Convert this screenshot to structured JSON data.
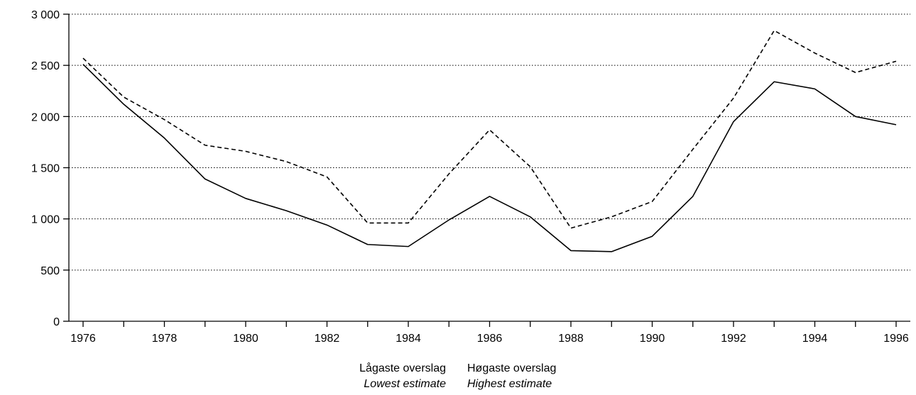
{
  "chart_data": {
    "type": "line",
    "title": "",
    "xlabel": "",
    "ylabel": "",
    "x": [
      1976,
      1977,
      1978,
      1979,
      1980,
      1981,
      1982,
      1983,
      1984,
      1985,
      1986,
      1987,
      1988,
      1989,
      1990,
      1991,
      1992,
      1993,
      1994,
      1995,
      1996
    ],
    "x_ticks": [
      "1976",
      "1978",
      "1980",
      "1982",
      "1984",
      "1986",
      "1988",
      "1990",
      "1992",
      "1994",
      "1996"
    ],
    "y_ticks": [
      "0",
      "500",
      "1 000",
      "1 500",
      "2 000",
      "2 500",
      "3 000"
    ],
    "y_tick_values": [
      0,
      500,
      1000,
      1500,
      2000,
      2500,
      3000
    ],
    "ylim": [
      0,
      3000
    ],
    "xlim": [
      1976,
      1996
    ],
    "grid": "horizontal dotted",
    "legend_position": "bottom-center",
    "series": [
      {
        "name": "Lågaste overslag",
        "name_en": "Lowest estimate",
        "style": "solid",
        "color": "#000000",
        "values": [
          2510,
          2120,
          1790,
          1390,
          1200,
          1080,
          940,
          750,
          730,
          990,
          1220,
          1020,
          690,
          680,
          830,
          1220,
          1950,
          2340,
          2270,
          2000,
          1920
        ]
      },
      {
        "name": "Høgaste overslag",
        "name_en": "Highest estimate",
        "style": "dashed",
        "color": "#000000",
        "values": [
          2570,
          2190,
          1970,
          1720,
          1660,
          1560,
          1410,
          960,
          960,
          1440,
          1870,
          1510,
          910,
          1020,
          1170,
          1680,
          2180,
          2840,
          2620,
          2430,
          2540
        ]
      }
    ]
  }
}
